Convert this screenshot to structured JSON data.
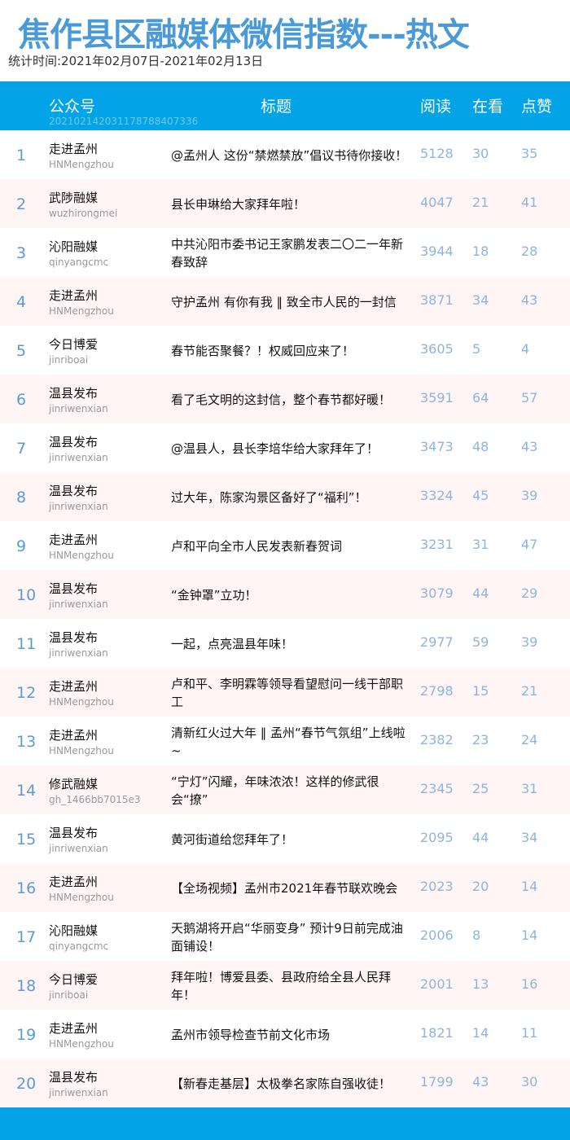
{
  "header": {
    "title": "焦作县区融媒体微信指数---热文",
    "period": "统计时间:2021年02月07日-2021年02月13日"
  },
  "colors": {
    "accent": "#03a3e8",
    "title": "#4a9ad8",
    "row_alt": "#fff5f5",
    "number": "#8db5dc"
  },
  "table": {
    "columns": {
      "account": "公众号",
      "code": "20210214203117878840733​6",
      "title": "标题",
      "read": "阅读",
      "see": "在看",
      "like": "点赞"
    },
    "rows": [
      {
        "rank": "1",
        "account": "走进孟州",
        "id": "HNMengzhou",
        "title": "@孟州人 这份“禁燃禁放”倡议书待你接收！",
        "read": "5128",
        "see": "30",
        "like": "35"
      },
      {
        "rank": "2",
        "account": "武陟融媒",
        "id": "wuzhirongmei",
        "title": "县长申琳给大家拜年啦！",
        "read": "4047",
        "see": "21",
        "like": "41"
      },
      {
        "rank": "3",
        "account": "沁阳融媒",
        "id": "qinyangcmc",
        "title": "中共沁阳市委书记王家鹏发表二〇二一年新春致辞",
        "read": "3944",
        "see": "18",
        "like": "28"
      },
      {
        "rank": "4",
        "account": "走进孟州",
        "id": "HNMengzhou",
        "title": "守护孟州 有你有我 ‖ 致全市人民的一封信",
        "read": "3871",
        "see": "34",
        "like": "43"
      },
      {
        "rank": "5",
        "account": "今日博爱",
        "id": "jinriboai",
        "title": "春节能否聚餐？！权威回应来了！",
        "read": "3605",
        "see": "5",
        "like": "4"
      },
      {
        "rank": "6",
        "account": "温县发布",
        "id": "jinriwenxian",
        "title": "看了毛文明的这封信，整个春节都好暖！",
        "read": "3591",
        "see": "64",
        "like": "57"
      },
      {
        "rank": "7",
        "account": "温县发布",
        "id": "jinriwenxian",
        "title": "@温县人，县长李培华给大家拜年了！",
        "read": "3473",
        "see": "48",
        "like": "43"
      },
      {
        "rank": "8",
        "account": "温县发布",
        "id": "jinriwenxian",
        "title": "过大年，陈家沟景区备好了“福利”！",
        "read": "3324",
        "see": "45",
        "like": "39"
      },
      {
        "rank": "9",
        "account": "走进孟州",
        "id": "HNMengzhou",
        "title": "卢和平向全市人民发表新春贺词",
        "read": "3231",
        "see": "31",
        "like": "47"
      },
      {
        "rank": "10",
        "account": "温县发布",
        "id": "jinriwenxian",
        "title": "“金钟罩”立功！",
        "read": "3079",
        "see": "44",
        "like": "29"
      },
      {
        "rank": "11",
        "account": "温县发布",
        "id": "jinriwenxian",
        "title": "一起，点亮温县年味！",
        "read": "2977",
        "see": "59",
        "like": "39"
      },
      {
        "rank": "12",
        "account": "走进孟州",
        "id": "HNMengzhou",
        "title": "卢和平、李明霖等领导看望慰问一线干部职工",
        "read": "2798",
        "see": "15",
        "like": "21"
      },
      {
        "rank": "13",
        "account": "走进孟州",
        "id": "HNMengzhou",
        "title": "清新红火过大年 ‖ 孟州“春节气氛组”上线啦~",
        "read": "2382",
        "see": "23",
        "like": "24"
      },
      {
        "rank": "14",
        "account": "修武融媒",
        "id": "gh_1466bb7015e3",
        "title": "“宁灯”闪耀，年味浓浓！这样的修武很会“撩”",
        "read": "2345",
        "see": "25",
        "like": "31"
      },
      {
        "rank": "15",
        "account": "温县发布",
        "id": "jinriwenxian",
        "title": "黄河街道给您拜年了！",
        "read": "2095",
        "see": "44",
        "like": "34"
      },
      {
        "rank": "16",
        "account": "走进孟州",
        "id": "HNMengzhou",
        "title": "【全场视频】孟州市2021年春节联欢晚会",
        "read": "2023",
        "see": "20",
        "like": "14"
      },
      {
        "rank": "17",
        "account": "沁阳融媒",
        "id": "qinyangcmc",
        "title": "天鹅湖将开启“华丽变身” 预计9日前完成油面铺设！",
        "read": "2006",
        "see": "8",
        "like": "14"
      },
      {
        "rank": "18",
        "account": "今日博爱",
        "id": "jinriboai",
        "title": "拜年啦！博爱县委、县政府给全县人民拜年！",
        "read": "2001",
        "see": "13",
        "like": "16"
      },
      {
        "rank": "19",
        "account": "走进孟州",
        "id": "HNMengzhou",
        "title": "孟州市领导检查节前文化市场",
        "read": "1821",
        "see": "14",
        "like": "11"
      },
      {
        "rank": "20",
        "account": "温县发布",
        "id": "jinriwenxian",
        "title": "【新春走基层】太极拳名家陈自强收徒！",
        "read": "1799",
        "see": "43",
        "like": "30"
      }
    ]
  }
}
